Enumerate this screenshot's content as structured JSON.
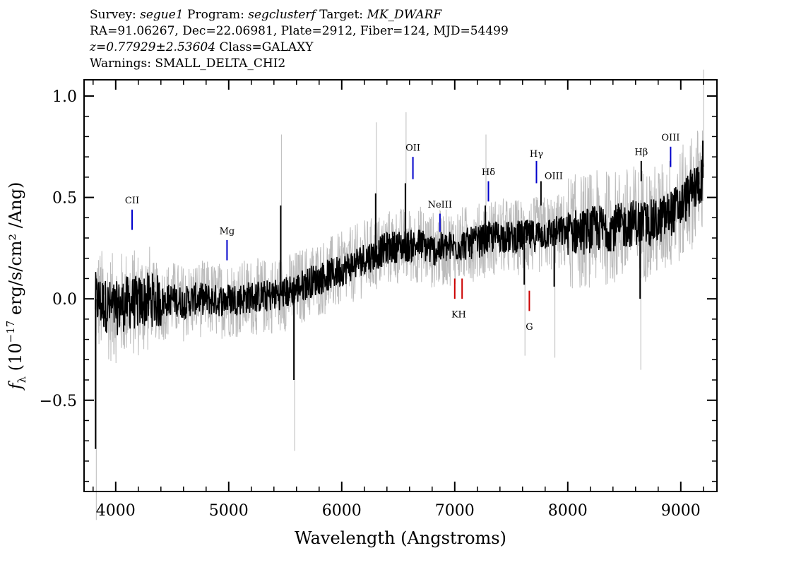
{
  "header": {
    "line1_survey_label": "Survey:",
    "line1_survey": "segue1",
    "line1_program_label": "Program:",
    "line1_program": "segclusterf",
    "line1_target_label": "Target:",
    "line1_target": "MK_DWARF",
    "line2": "RA=91.06267, Dec=22.06981, Plate=2912, Fiber=124, MJD=54499",
    "line3_z": "z=0.77929±2.53604",
    "line3_class": "Class=GALAXY",
    "line4": "Warnings: SMALL_DELTA_CHI2"
  },
  "chart_data": {
    "type": "line",
    "xlabel": "Wavelength (Angstroms)",
    "ylabel_prefix": "f",
    "ylabel_sub": "λ",
    "ylabel_main": " (10",
    "ylabel_sup": "−17",
    "ylabel_rest": " erg/s/cm² /Ang)",
    "xlim": [
      3720,
      9320
    ],
    "ylim": [
      -0.95,
      1.08
    ],
    "x_ticks": [
      4000,
      5000,
      6000,
      7000,
      8000,
      9000
    ],
    "x_tick_labels": [
      "4000",
      "5000",
      "6000",
      "7000",
      "8000",
      "9000"
    ],
    "y_ticks": [
      -0.5,
      0.0,
      0.5,
      1.0
    ],
    "y_tick_labels": [
      "−0.5",
      "0.0",
      "0.5",
      "1.0"
    ],
    "colors": {
      "flux": "#000000",
      "error": "#bbbbbb",
      "emission": "#0000cc",
      "absorption": "#cc0000",
      "sky": "#000000"
    },
    "series": [
      {
        "role": "flux",
        "x": [
          3820,
          3900,
          4000,
          4100,
          4200,
          4300,
          4400,
          4500,
          4600,
          4700,
          4800,
          4900,
          5000,
          5100,
          5200,
          5300,
          5400,
          5500,
          5600,
          5700,
          5800,
          5900,
          6000,
          6100,
          6200,
          6300,
          6400,
          6500,
          6600,
          6700,
          6800,
          6900,
          7000,
          7100,
          7200,
          7300,
          7400,
          7500,
          7600,
          7700,
          7800,
          7900,
          8000,
          8100,
          8200,
          8300,
          8400,
          8500,
          8600,
          8700,
          8800,
          8900,
          9000,
          9100,
          9200
        ],
        "y": [
          0.0,
          -0.03,
          -0.05,
          -0.02,
          -0.02,
          0.0,
          -0.02,
          0.0,
          -0.02,
          0.0,
          0.0,
          -0.01,
          0.0,
          0.0,
          0.01,
          0.01,
          0.02,
          0.03,
          0.05,
          0.08,
          0.1,
          0.12,
          0.14,
          0.17,
          0.2,
          0.22,
          0.25,
          0.26,
          0.26,
          0.27,
          0.24,
          0.25,
          0.26,
          0.27,
          0.28,
          0.3,
          0.31,
          0.3,
          0.31,
          0.31,
          0.32,
          0.33,
          0.33,
          0.33,
          0.34,
          0.35,
          0.35,
          0.36,
          0.38,
          0.37,
          0.38,
          0.42,
          0.46,
          0.53,
          0.6
        ]
      }
    ],
    "spikes": [
      {
        "x": 3822,
        "y": -0.74
      },
      {
        "x": 5460,
        "y": 0.46
      },
      {
        "x": 5577,
        "y": -0.4
      },
      {
        "x": 6300,
        "y": 0.52
      },
      {
        "x": 6563,
        "y": 0.57
      },
      {
        "x": 7270,
        "y": 0.46
      },
      {
        "x": 7615,
        "y": 0.07
      },
      {
        "x": 7880,
        "y": 0.06
      },
      {
        "x": 8640,
        "y": 0.0
      },
      {
        "x": 9195,
        "y": 0.78
      }
    ],
    "lines": [
      {
        "label": "CII",
        "x": 4145,
        "y0": 0.34,
        "y1": 0.44,
        "color": "emission",
        "label_y": 0.47,
        "label_pos": "above"
      },
      {
        "label": "Mg",
        "x": 4985,
        "y0": 0.19,
        "y1": 0.29,
        "color": "emission",
        "label_y": 0.32,
        "label_pos": "above"
      },
      {
        "label": "OII",
        "x": 6630,
        "y0": 0.59,
        "y1": 0.7,
        "color": "emission",
        "label_y": 0.73,
        "label_pos": "above"
      },
      {
        "label": "NeIII",
        "x": 6869,
        "y0": 0.33,
        "y1": 0.42,
        "color": "emission",
        "label_y": 0.45,
        "label_pos": "above"
      },
      {
        "label": "Hδ",
        "x": 7298,
        "y0": 0.48,
        "y1": 0.58,
        "color": "emission",
        "label_y": 0.61,
        "label_pos": "above"
      },
      {
        "label": "Hγ",
        "x": 7723,
        "y0": 0.57,
        "y1": 0.68,
        "color": "emission",
        "label_y": 0.7,
        "label_pos": "above"
      },
      {
        "label": "OIII",
        "x": 7763,
        "y0": 0.46,
        "y1": 0.58,
        "color": "sky",
        "label_y": 0.59,
        "label_pos": "right"
      },
      {
        "label": "Hβ",
        "x": 8650,
        "y0": 0.58,
        "y1": 0.68,
        "color": "sky",
        "label_y": 0.71,
        "label_pos": "above"
      },
      {
        "label": "OIII",
        "x": 8910,
        "y0": 0.65,
        "y1": 0.75,
        "color": "emission",
        "label_y": 0.78,
        "label_pos": "above"
      },
      {
        "label": "K",
        "x": 7000,
        "y0": 0.0,
        "y1": 0.1,
        "color": "absorption",
        "label_y": -0.05,
        "label_pos": "below"
      },
      {
        "label": "H",
        "x": 7065,
        "y0": 0.0,
        "y1": 0.1,
        "color": "absorption",
        "label_y": -0.05,
        "label_pos": "below"
      },
      {
        "label": "G",
        "x": 7660,
        "y0": -0.06,
        "y1": 0.04,
        "color": "absorption",
        "label_y": -0.11,
        "label_pos": "below"
      }
    ]
  }
}
